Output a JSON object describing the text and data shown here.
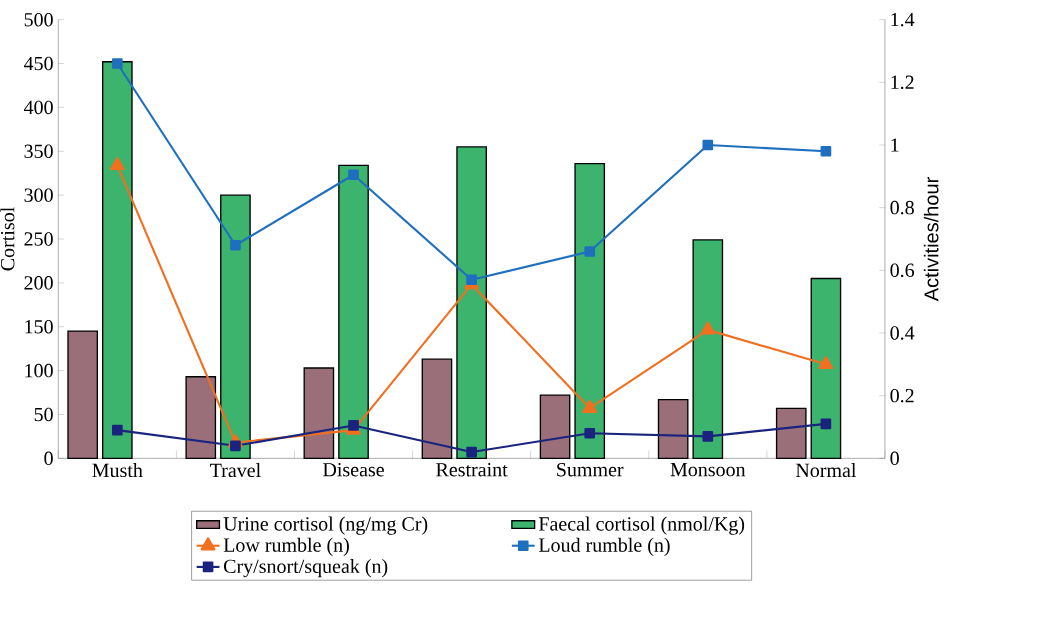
{
  "chart_data": {
    "type": "bar",
    "ylabel": "Cortisol",
    "y2label": "Activities/hour",
    "categories": [
      "Musth",
      "Travel",
      "Disease",
      "Restraint",
      "Summer",
      "Monsoon",
      "Normal"
    ],
    "ylim": [
      0,
      500
    ],
    "yticks": [
      0,
      50,
      100,
      150,
      200,
      250,
      300,
      350,
      400,
      450,
      500
    ],
    "y2lim": [
      0,
      1.4
    ],
    "y2ticks": [
      0,
      0.2,
      0.4,
      0.6,
      0.8,
      1,
      1.2,
      1.4
    ],
    "legend": "bottom",
    "grid": false,
    "series": [
      {
        "name": "Urine cortisol (ng/mg Cr)",
        "color": "#9a6f7a",
        "values": [
          145,
          93,
          103,
          113,
          72,
          67,
          57
        ]
      },
      {
        "name": "Faecal cortisol (nmol/Kg)",
        "color": "#3cb46e",
        "values": [
          452,
          300,
          334,
          355,
          336,
          249,
          205
        ]
      },
      {
        "name": "Low rumble (n)",
        "type": "line",
        "axis": "y2",
        "marker": "triangle",
        "color": "#f07020",
        "values": [
          0.935,
          0.05,
          0.09,
          0.555,
          0.16,
          0.41,
          0.3
        ]
      },
      {
        "name": "Loud rumble (n)",
        "type": "line",
        "axis": "y2",
        "marker": "square",
        "color": "#1f6fbf",
        "values": [
          1.26,
          0.68,
          0.905,
          0.57,
          0.66,
          1.0,
          0.98
        ]
      },
      {
        "name": "Cry/snort/squeak (n)",
        "type": "line",
        "axis": "y2",
        "marker": "square",
        "color": "#1a237e",
        "values": [
          0.09,
          0.04,
          0.105,
          0.02,
          0.08,
          0.07,
          0.11
        ]
      }
    ]
  }
}
